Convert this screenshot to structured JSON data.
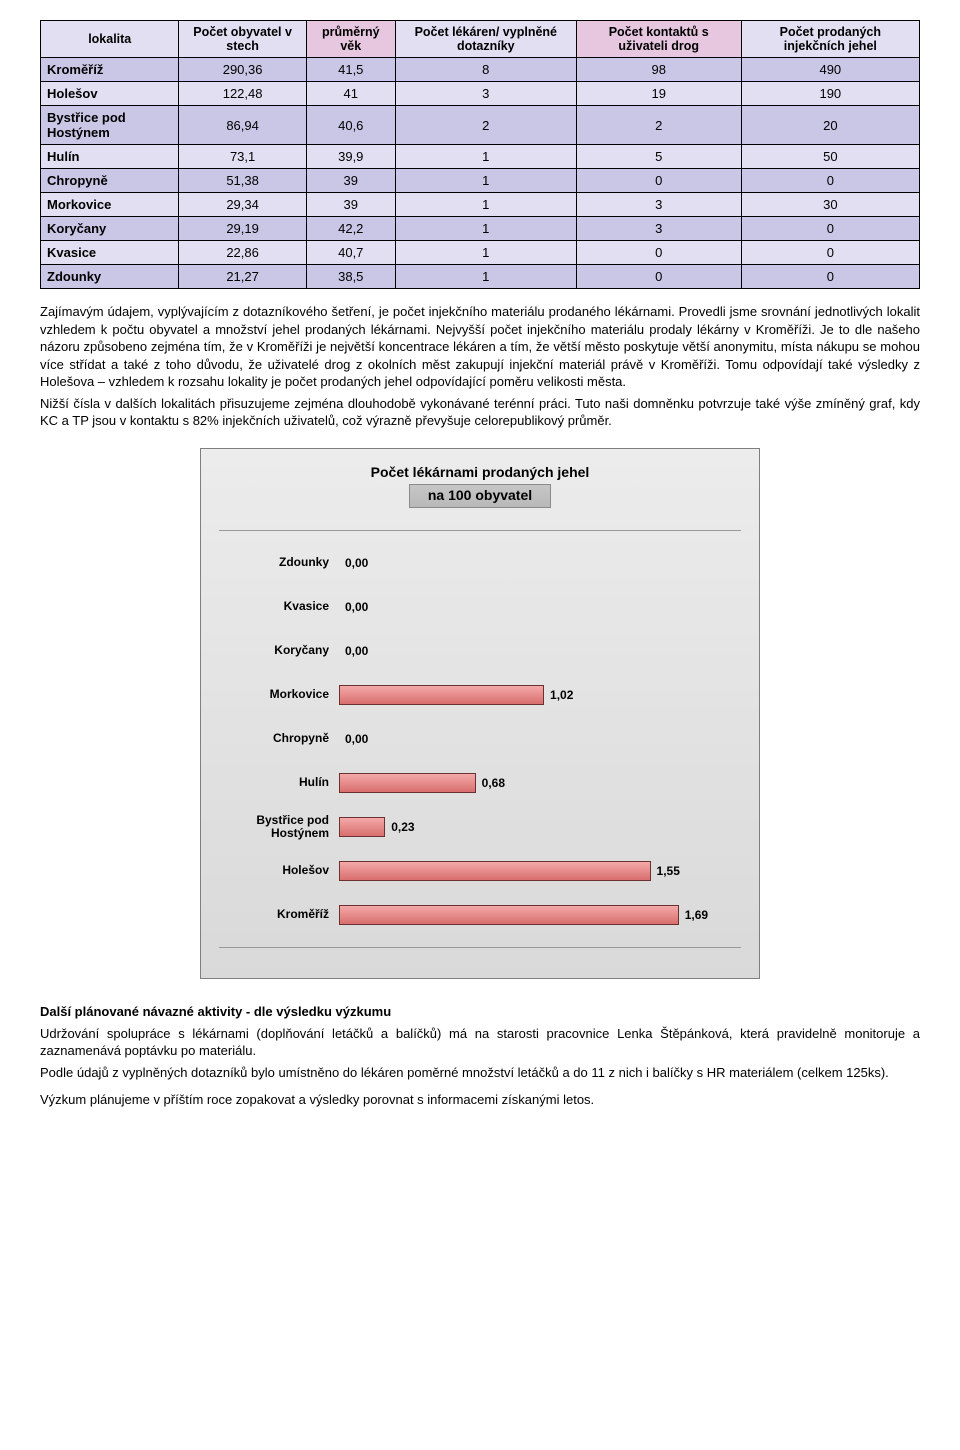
{
  "table": {
    "headers": [
      "lokalita",
      "Počet obyvatel v stech",
      "průměrný věk",
      "Počet lékáren/ vyplněné dotazníky",
      "Počet kontaktů s uživateli drog",
      "Počet prodaných injekčních jehel"
    ],
    "header_bg": [
      "#e2dff2",
      "#e2dff2",
      "#e6c7df",
      "#e2dff2",
      "#e6c7df",
      "#e2dff2"
    ],
    "rows": [
      {
        "cells": [
          "Kroměříž",
          "290,36",
          "41,5",
          "8",
          "98",
          "490"
        ],
        "bg": "#c9c6e6"
      },
      {
        "cells": [
          "Holešov",
          "122,48",
          "41",
          "3",
          "19",
          "190"
        ],
        "bg": "#e2dff2"
      },
      {
        "cells": [
          "Bystřice pod Hostýnem",
          "86,94",
          "40,6",
          "2",
          "2",
          "20"
        ],
        "bg": "#c9c6e6"
      },
      {
        "cells": [
          "Hulín",
          "73,1",
          "39,9",
          "1",
          "5",
          "50"
        ],
        "bg": "#e2dff2"
      },
      {
        "cells": [
          "Chropyně",
          "51,38",
          "39",
          "1",
          "0",
          "0"
        ],
        "bg": "#c9c6e6"
      },
      {
        "cells": [
          "Morkovice",
          "29,34",
          "39",
          "1",
          "3",
          "30"
        ],
        "bg": "#e2dff2"
      },
      {
        "cells": [
          "Koryčany",
          "29,19",
          "42,2",
          "1",
          "3",
          "0"
        ],
        "bg": "#c9c6e6"
      },
      {
        "cells": [
          "Kvasice",
          "22,86",
          "40,7",
          "1",
          "0",
          "0"
        ],
        "bg": "#e2dff2"
      },
      {
        "cells": [
          "Zdounky",
          "21,27",
          "38,5",
          "1",
          "0",
          "0"
        ],
        "bg": "#c9c6e6"
      }
    ]
  },
  "para1": "Zajímavým údajem, vyplývajícím z dotazníkového šetření, je počet injekčního materiálu prodaného lékárnami. Provedli jsme srovnání jednotlivých lokalit vzhledem k počtu obyvatel a množství jehel prodaných lékárnami. Nejvyšší počet injekčního materiálu prodaly lékárny v Kroměříži. Je to dle našeho názoru způsobeno zejména tím, že v Kroměříži je největší koncentrace lékáren a tím, že větší město poskytuje větší anonymitu, místa nákupu se mohou více střídat a také z toho důvodu, že uživatelé drog z okolních měst zakupují injekční materiál právě v Kroměříži. Tomu odpovídají také výsledky z Holešova – vzhledem k rozsahu lokality je počet prodaných jehel odpovídající poměru velikosti města.",
  "para2": "Nižší čísla v dalších lokalitách přisuzujeme zejména dlouhodobě vykonávané terénní práci. Tuto naši domněnku potvrzuje také výše zmíněný graf, kdy KC a TP jsou v kontaktu s 82% injekčních uživatelů, což výrazně převyšuje celorepublikový průměr.",
  "chart": {
    "title_line1": "Počet lékárnami prodaných jehel",
    "title_line2": "na 100 obyvatel",
    "xmax": 2.0,
    "bar_color_from": "#f4a9a9",
    "bar_color_to": "#d96e6e",
    "bar_border": "#6b3030",
    "bg_from": "#ececec",
    "bg_to": "#d9d9d9",
    "items": [
      {
        "label": "Zdounky",
        "value": 0.0,
        "value_label": "0,00"
      },
      {
        "label": "Kvasice",
        "value": 0.0,
        "value_label": "0,00"
      },
      {
        "label": "Koryčany",
        "value": 0.0,
        "value_label": "0,00"
      },
      {
        "label": "Morkovice",
        "value": 1.02,
        "value_label": "1,02"
      },
      {
        "label": "Chropyně",
        "value": 0.0,
        "value_label": "0,00"
      },
      {
        "label": "Hulín",
        "value": 0.68,
        "value_label": "0,68"
      },
      {
        "label": "Bystřice pod Hostýnem",
        "value": 0.23,
        "value_label": "0,23"
      },
      {
        "label": "Holešov",
        "value": 1.55,
        "value_label": "1,55"
      },
      {
        "label": "Kroměříž",
        "value": 1.69,
        "value_label": "1,69"
      }
    ]
  },
  "section_head": "Další plánované návazné aktivity  - dle výsledku výzkumu",
  "para3": "Udržování spolupráce s lékárnami (doplňování letáčků a balíčků) má na starosti pracovnice Lenka Štěpánková, která pravidelně monitoruje a zaznamenává poptávku po materiálu.",
  "para4": "Podle údajů z vyplněných dotazníků bylo umístněno do lékáren poměrné množství letáčků a do 11 z nich i balíčky s HR materiálem (celkem 125ks).",
  "para5": "Výzkum plánujeme v příštím roce zopakovat a výsledky porovnat s informacemi získanými letos."
}
